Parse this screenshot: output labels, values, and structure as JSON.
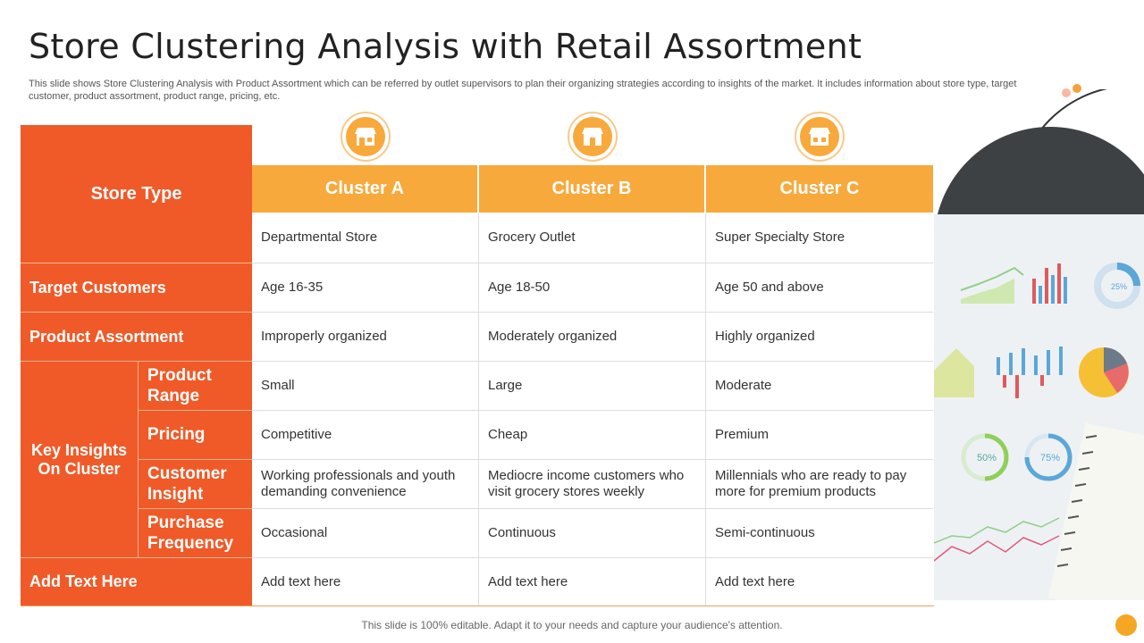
{
  "title": "Store Clustering Analysis with Retail Assortment",
  "subtitle": "This slide shows Store Clustering Analysis with Product Assortment which can be referred by outlet supervisors to plan their organizing strategies according to insights of the market. It includes information about store type, target customer, product assortment, product range, pricing, etc.",
  "table": {
    "store_type_label": "Store Type",
    "clusters": [
      "Cluster A",
      "Cluster B",
      "Cluster C"
    ],
    "rows": [
      {
        "label": "",
        "values": [
          "Departmental Store",
          "Grocery Outlet",
          "Super Specialty Store"
        ]
      },
      {
        "label": "Target Customers",
        "values": [
          "Age 16-35",
          "Age 18-50",
          "Age 50 and above"
        ]
      },
      {
        "label": "Product Assortment",
        "values": [
          "Improperly organized",
          "Moderately organized",
          "Highly organized"
        ]
      },
      {
        "label": "Product Range",
        "values": [
          "Small",
          "Large",
          "Moderate"
        ]
      },
      {
        "label": "Pricing",
        "values": [
          "Competitive",
          "Cheap",
          "Premium"
        ]
      },
      {
        "label": "Customer Insight",
        "values": [
          "Working professionals and youth demanding convenience",
          "Mediocre income customers who visit grocery stores weekly",
          "Millennials  who are ready to pay more for premium products"
        ]
      },
      {
        "label": "Purchase Frequency",
        "values": [
          "Occasional",
          "Continuous",
          "Semi-continuous"
        ]
      },
      {
        "label": "Add Text Here",
        "values": [
          "Add text here",
          "Add text here",
          "Add text here"
        ]
      }
    ],
    "group_label": "Key Insights On Cluster"
  },
  "icons": [
    "store-icon",
    "store-icon",
    "store-icon"
  ],
  "footer": "This slide is 100% editable. Adapt it to your needs and capture your audience's attention.",
  "deco_labels": {
    "gauge1": "25%",
    "gauge2": "50%",
    "gauge3": "75%"
  },
  "colors": {
    "primary_orange": "#f05a28",
    "header_orange": "#f8a93c",
    "accent_dot": "#f5a623"
  }
}
